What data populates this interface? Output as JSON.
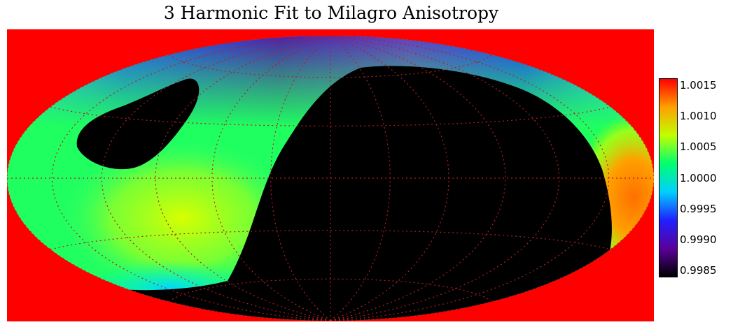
{
  "chart_data": {
    "type": "heatmap",
    "title": "3 Harmonic Fit to Milagro Anisotropy",
    "projection": "Hammer-Aitoff all-sky map",
    "background_color": "#ff0000",
    "graticule_color": "#b02020",
    "colorbar": {
      "min": 0.9985,
      "max": 1.0015,
      "ticks": [
        "1.0015",
        "1.0010",
        "1.0005",
        "1.0000",
        "0.9995",
        "0.9990",
        "0.9985"
      ],
      "tick_values": [
        1.0015,
        1.001,
        1.0005,
        1.0,
        0.9995,
        0.999,
        0.9985
      ],
      "colors": [
        "#000000",
        "#5a009a",
        "#2020ff",
        "#00d0ff",
        "#00ff70",
        "#c0ff00",
        "#ffa000",
        "#ff0000"
      ]
    },
    "regions": [
      {
        "name": "black region (below 0.9985, large crescent)",
        "value": 0.9985
      },
      {
        "name": "black region (below 0.9985, small oval)",
        "value": 0.9985
      },
      {
        "name": "north polar band",
        "value": 0.9992
      },
      {
        "name": "left lobe",
        "value": 1.0002
      },
      {
        "name": "right edge hotspot",
        "value": 1.0012
      }
    ]
  }
}
